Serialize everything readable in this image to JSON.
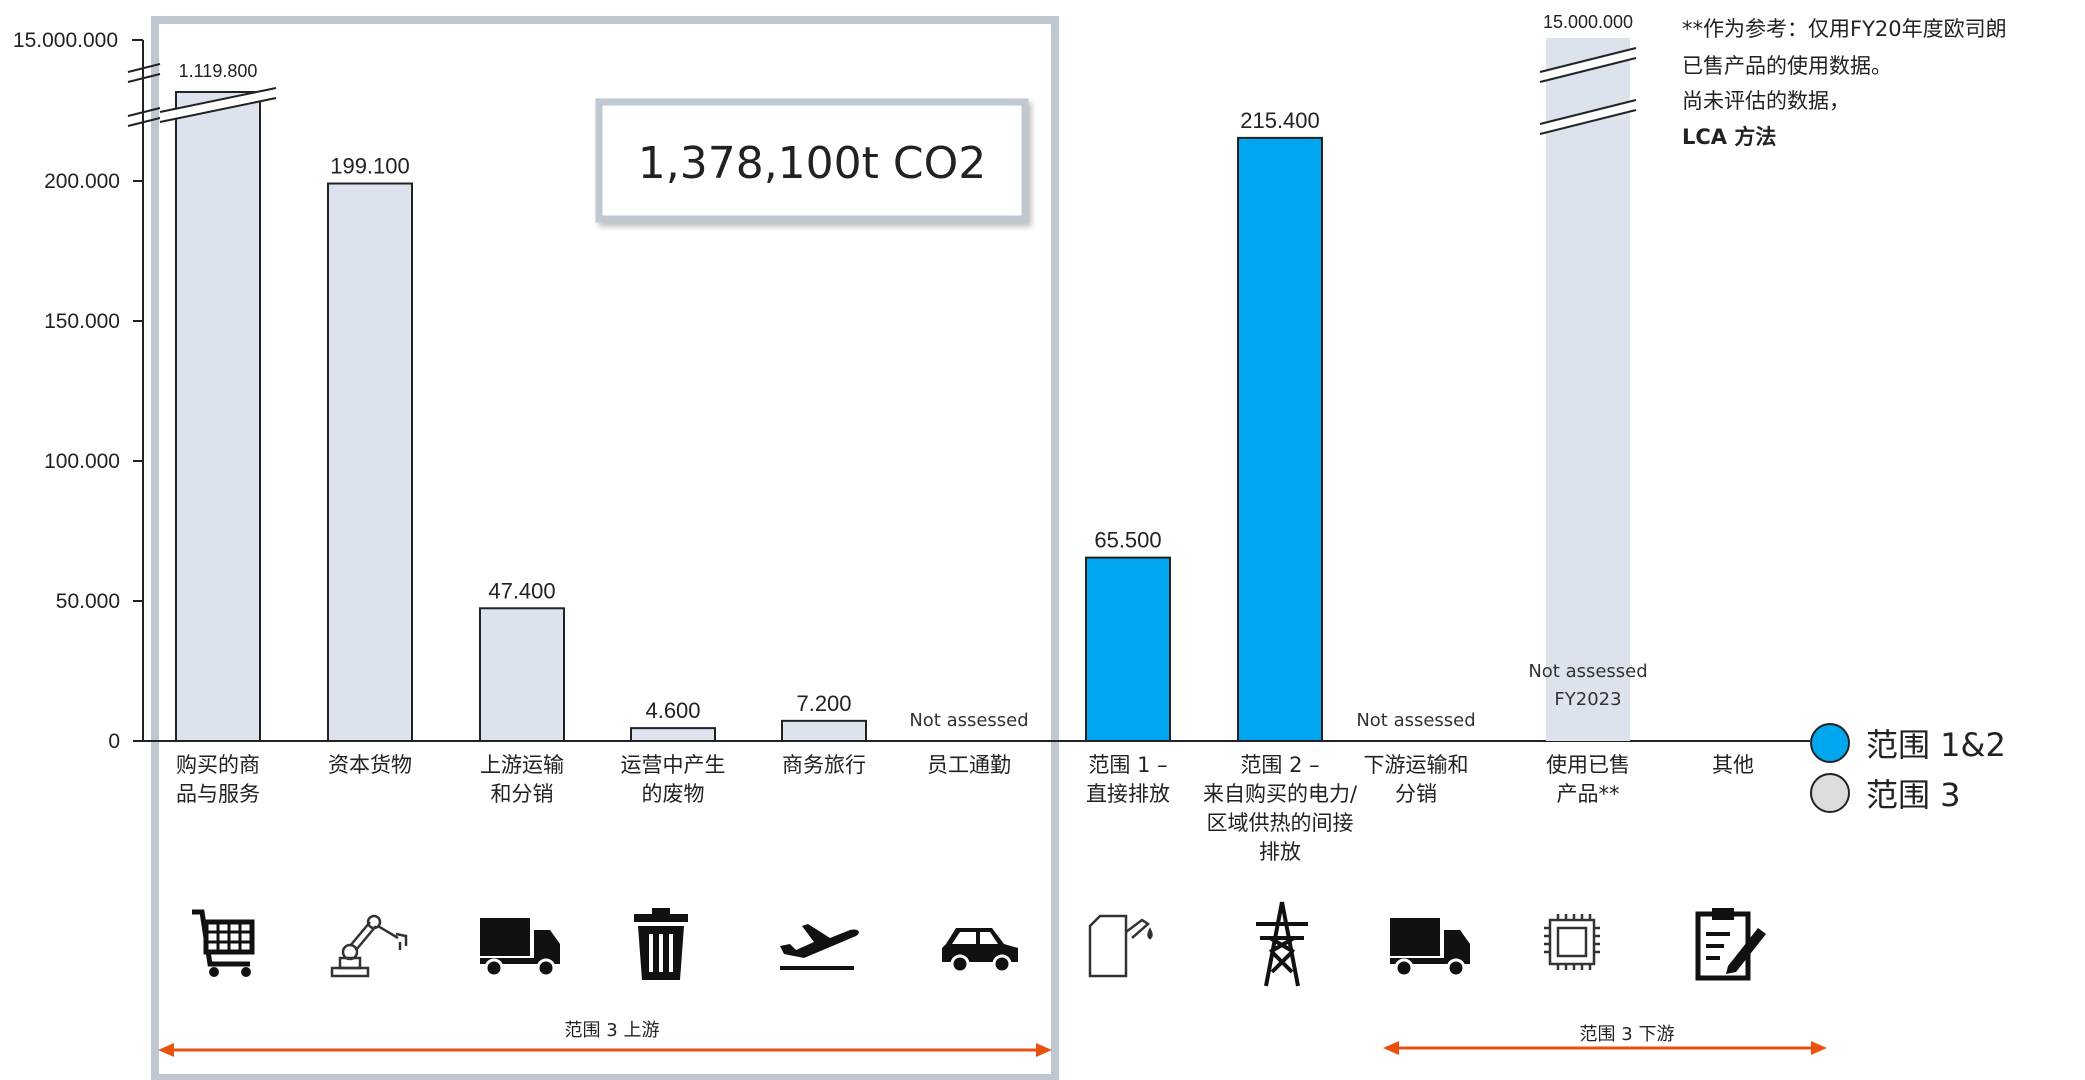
{
  "chart_data": {
    "type": "bar",
    "title": "",
    "ylabel": "",
    "xlabel": "",
    "ylim": [
      0,
      220000
    ],
    "y_ticks": [
      "0",
      "50.000",
      "100.000",
      "150.000",
      "200.000"
    ],
    "y_break_label": "15.000.000",
    "categories": [
      {
        "label": [
          "购买的商",
          "品与服务"
        ],
        "value": 1119800,
        "value_label": "1.119.800",
        "series": "scope3",
        "broken": true
      },
      {
        "label": [
          "资本货物"
        ],
        "value": 199100,
        "value_label": "199.100",
        "series": "scope3"
      },
      {
        "label": [
          "上游运输",
          "和分销"
        ],
        "value": 47400,
        "value_label": "47.400",
        "series": "scope3"
      },
      {
        "label": [
          "运营中产生",
          "的废物"
        ],
        "value": 4600,
        "value_label": "4.600",
        "series": "scope3"
      },
      {
        "label": [
          "商务旅行"
        ],
        "value": 7200,
        "value_label": "7.200",
        "series": "scope3"
      },
      {
        "label": [
          "员工通勤"
        ],
        "value": null,
        "value_label": "Not assessed",
        "series": "scope3"
      },
      {
        "label": [
          "范围 1 –",
          "直接排放"
        ],
        "value": 65500,
        "value_label": "65.500",
        "series": "scope12"
      },
      {
        "label": [
          "范围 2 –",
          "来自购买的电力/",
          "区域供热的间接",
          "排放"
        ],
        "value": 215400,
        "value_label": "215.400",
        "series": "scope12"
      },
      {
        "label": [
          "下游运输和",
          "分销"
        ],
        "value": null,
        "value_label": "Not assessed",
        "series": "scope3"
      },
      {
        "label": [
          "使用已售",
          "产品**"
        ],
        "value": 15000000,
        "value_label": "15.000.000",
        "series": "scope3",
        "broken": true,
        "estimate": true,
        "extra_labels": [
          "Not assessed",
          "FY2023"
        ]
      },
      {
        "label": [
          "其他"
        ],
        "value": null,
        "value_label": "",
        "series": "scope3"
      }
    ],
    "series": [
      {
        "key": "scope12",
        "name": "范围 1&2",
        "color": "#00A6EE"
      },
      {
        "key": "scope3",
        "name": "范围 3",
        "color": "#DDE3EC"
      }
    ],
    "legend_position": "right",
    "grid": false
  },
  "total_box": {
    "text": "1,378,100t CO2"
  },
  "note": {
    "lines": [
      "**作为参考：仅用FY20年度欧司朗",
      "已售产品的使用数据。",
      "尚未评估的数据，"
    ],
    "bold_line": "LCA 方法"
  },
  "upstream_arrow_label": "范围 3 上游",
  "downstream_arrow_label": "范围 3 下游",
  "icons": [
    "shopping-cart-icon",
    "robot-arm-icon",
    "truck-icon",
    "trash-can-icon",
    "airplane-icon",
    "car-icon",
    "fuel-can-icon",
    "power-pylon-icon",
    "truck-icon",
    "microchip-icon",
    "clipboard-edit-icon"
  ],
  "colors": {
    "scope12": "#00A6EE",
    "scope3": "#DDE3EC",
    "frame": "#BFC7D1",
    "arrow": "#E8520F"
  }
}
